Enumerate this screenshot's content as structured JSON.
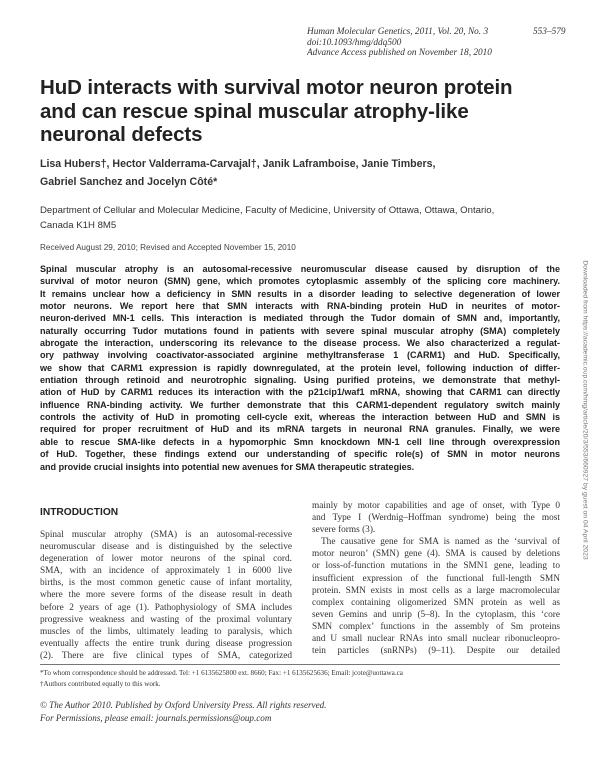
{
  "header": {
    "journal": "Human Molecular Genetics, 2011, Vol. 20, No. 3",
    "pages": "553–579",
    "doi": "doi:10.1093/hmg/ddq500",
    "advance_access": "Advance Access published on November 18, 2010"
  },
  "title_lines": [
    "HuD interacts with survival motor neuron protein",
    "and can rescue spinal muscular atrophy-like",
    "neuronal defects"
  ],
  "authors": {
    "line1": "Lisa Hubers†, Hector Valderrama-Carvajal†, Janik Laframboise, Janie Timbers,",
    "line2": "Gabriel Sanchez and Jocelyn Côté*"
  },
  "affiliation": [
    "Department of Cellular and Molecular Medicine, Faculty of Medicine, University of Ottawa, Ottawa, Ontario,",
    "Canada K1H 8M5"
  ],
  "received": "Received August 29, 2010; Revised and Accepted November 15, 2010",
  "abstract_lines": [
    "Spinal muscular atrophy is an autosomal-recessive neuromuscular disease caused by disruption of the",
    "survival of motor neuron (SMN) gene, which promotes cytoplasmic assembly of the splicing core machinery.",
    "It remains unclear how a deficiency in SMN results in a disorder leading to selective degeneration of lower",
    "motor neurons. We report here that SMN interacts with RNA-binding protein HuD in neurites of motor-",
    "neuron-derived MN-1 cells. This interaction is mediated through the Tudor domain of SMN and, importantly,",
    "naturally occurring Tudor mutations found in patients with severe spinal muscular atrophy (SMA) completely",
    "abrogate the interaction, underscoring its relevance to the disease process. We also characterized a regulat-",
    "ory pathway involving coactivator-associated arginine methyltransferase 1 (CARM1) and HuD. Specifically,",
    "we show that CARM1 expression is rapidly downregulated, at the protein level, following induction of differ-",
    "entiation through retinoid and neurotrophic signaling. Using purified proteins, we demonstrate that methyl-",
    "ation of HuD by CARM1 reduces its interaction with the p21cip1/waf1 mRNA, showing that CARM1 can directly",
    "influence RNA-binding activity. We further demonstrate that this CARM1-dependent regulatory switch mainly",
    "controls the activity of HuD in promoting cell-cycle exit, whereas the interaction between HuD and SMN is",
    "required for proper recruitment of HuD and its mRNA targets in neuronal RNA granules. Finally, we were",
    "able to rescue SMA-like defects in a hypomorphic Smn knockdown MN-1 cell line through overexpression",
    "of HuD. Together, these findings extend our understanding of specific role(s) of SMN in motor neurons",
    "and provide crucial insights into potential new avenues for SMA therapeutic strategies."
  ],
  "introduction": {
    "heading": "INTRODUCTION",
    "left_lines": [
      "Spinal muscular atrophy (SMA) is an autosomal-recessive",
      "neuromuscular disease and is distinguished by the selective",
      "degeneration of lower motor neurons of the spinal cord.",
      "SMA, with an incidence of approximately 1 in 6000 live",
      "births, is the most common genetic cause of infant mortality,",
      "where the more severe forms of the disease result in death",
      "before 2 years of age (1). Pathophysiology of SMA includes",
      "progressive weakness and wasting of the proximal voluntary",
      "muscles of the limbs, ultimately leading to paralysis, which",
      "eventually affects the entire trunk during disease progression",
      "(2). There are five clinical types of SMA, categorized"
    ],
    "right_lines": [
      "mainly by motor capabilities and age of onset, with Type 0",
      "and Type I (Werdnig–Hoffman syndrome) being the most",
      "severe forms (3).",
      "The causative gene for SMA is named as the ‘survival of",
      "motor neuron’ (SMN) gene (4). SMA is caused by deletions",
      "or loss-of-function mutations in the SMN1 gene, leading to",
      "insufficient expression of the functional full-length SMN",
      "protein. SMN exists in most cells as a large macromolecular",
      "complex containing oligomerized SMN protein as well as",
      "seven Gemins and unrip (5–8). In the cytoplasm, this ‘core",
      "SMN complex’ functions in the assembly of Sm proteins",
      "and U small nuclear RNAs into small nuclear ribonucleopro-",
      "tein particles (snRNPs) (9–11). Despite our detailed"
    ]
  },
  "footnotes": [
    "*To whom correspondence should be addressed. Tel: +1 6135625800 ext. 8660; Fax: +1 6135625636; Email: jcote@uottawa.ca",
    "†Authors contributed equally to this work."
  ],
  "copyright": [
    "© The Author 2010. Published by Oxford University Press. All rights reserved.",
    "For Permissions, please email: journals.permissions@oup.com"
  ],
  "side_note": "Downloaded from https://academic.oup.com/hmg/article/20/3/553/660927 by guest on 04 April 2023"
}
